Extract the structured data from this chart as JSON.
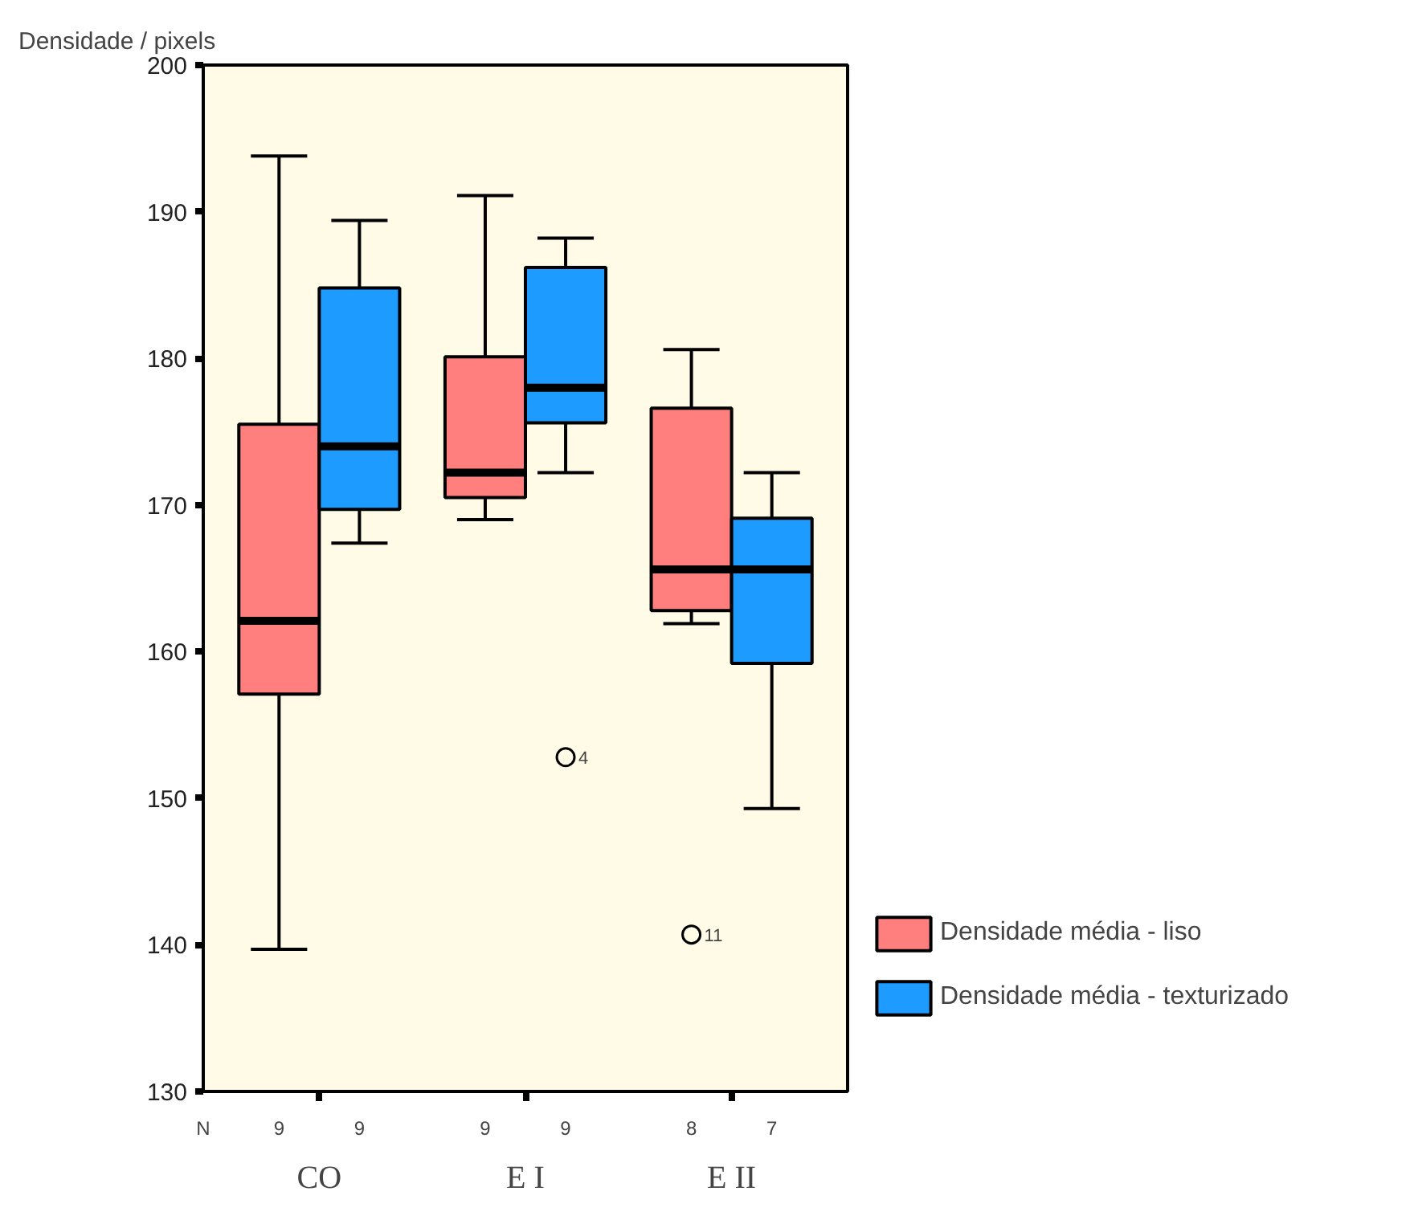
{
  "chart_data": {
    "type": "box",
    "ylabel": "Densidade / pixels",
    "categories": [
      "CO",
      "E I",
      "E II"
    ],
    "ylim": [
      130,
      200
    ],
    "yticks": [
      130,
      140,
      150,
      160,
      170,
      180,
      190,
      200
    ],
    "grid": false,
    "legend": "right",
    "series": [
      {
        "name": "Densidade média - liso",
        "color": "#ff7f7f",
        "value_labels": [
          "9",
          "9",
          "8"
        ],
        "boxes": [
          {
            "low": 139.7,
            "q1": 157.1,
            "median": 162.1,
            "q3": 175.5,
            "high": 193.8
          },
          {
            "low": 169.0,
            "q1": 170.5,
            "median": 172.2,
            "q3": 180.1,
            "high": 191.1
          },
          {
            "low": 161.9,
            "q1": 162.8,
            "median": 165.6,
            "q3": 176.6,
            "high": 180.6,
            "outliers": [
              140.7
            ]
          }
        ]
      },
      {
        "name": "Densidade média - texturizado",
        "color": "#1e9bff",
        "value_labels": [
          "9",
          "9",
          "7"
        ],
        "boxes": [
          {
            "low": 167.4,
            "q1": 169.7,
            "median": 174.0,
            "q3": 184.8,
            "high": 189.4
          },
          {
            "low": 172.2,
            "q1": 175.6,
            "median": 178.0,
            "q3": 186.2,
            "high": 188.2,
            "outliers": [
              152.8
            ]
          },
          {
            "low": 149.3,
            "q1": 159.2,
            "median": 165.6,
            "q3": 169.1,
            "high": 172.2
          }
        ]
      }
    ],
    "annotations": [
      "N",
      "4",
      "11"
    ]
  }
}
